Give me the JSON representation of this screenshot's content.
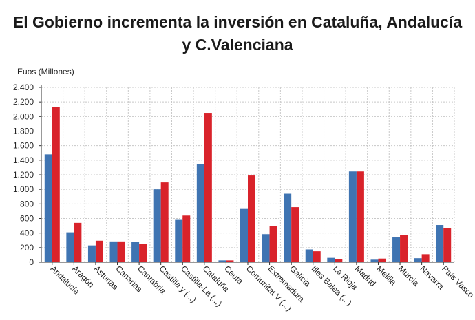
{
  "chart_data": {
    "type": "bar",
    "title_line1": "El Gobierno incrementa la inversión en Cataluña, Andalucía",
    "title_line2": "y C.Valenciana",
    "ylabel": "Euos (Millones)",
    "ylim": [
      0,
      2400
    ],
    "yticks": [
      0,
      200,
      400,
      600,
      800,
      "1.000",
      "1.200",
      "1.400",
      "1.600",
      "1.800",
      "2.000",
      "2.200",
      "2.400"
    ],
    "grid": true,
    "colors": [
      "#3f74b2",
      "#d9232b"
    ],
    "categories": [
      "Andalucía",
      "Aragón",
      "Asturias",
      "Canarias",
      "Cantabria",
      "Castilla y (...)",
      "Castilla-La (...)",
      "Cataluña",
      "Ceuta",
      "Comunitat V (...)",
      "Extremadura",
      "Galicia",
      "Illes Balea (...)",
      "La Rioja",
      "Madrid",
      "Melilla",
      "Murcia",
      "Navarra",
      "País Vasco"
    ],
    "series": [
      {
        "values": [
          1480,
          410,
          230,
          285,
          275,
          1000,
          590,
          1350,
          25,
          740,
          385,
          940,
          175,
          60,
          1245,
          35,
          340,
          55,
          510
        ]
      },
      {
        "values": [
          2130,
          540,
          295,
          285,
          250,
          1095,
          640,
          2050,
          25,
          1190,
          495,
          755,
          150,
          40,
          1245,
          50,
          375,
          110,
          470
        ]
      }
    ]
  }
}
